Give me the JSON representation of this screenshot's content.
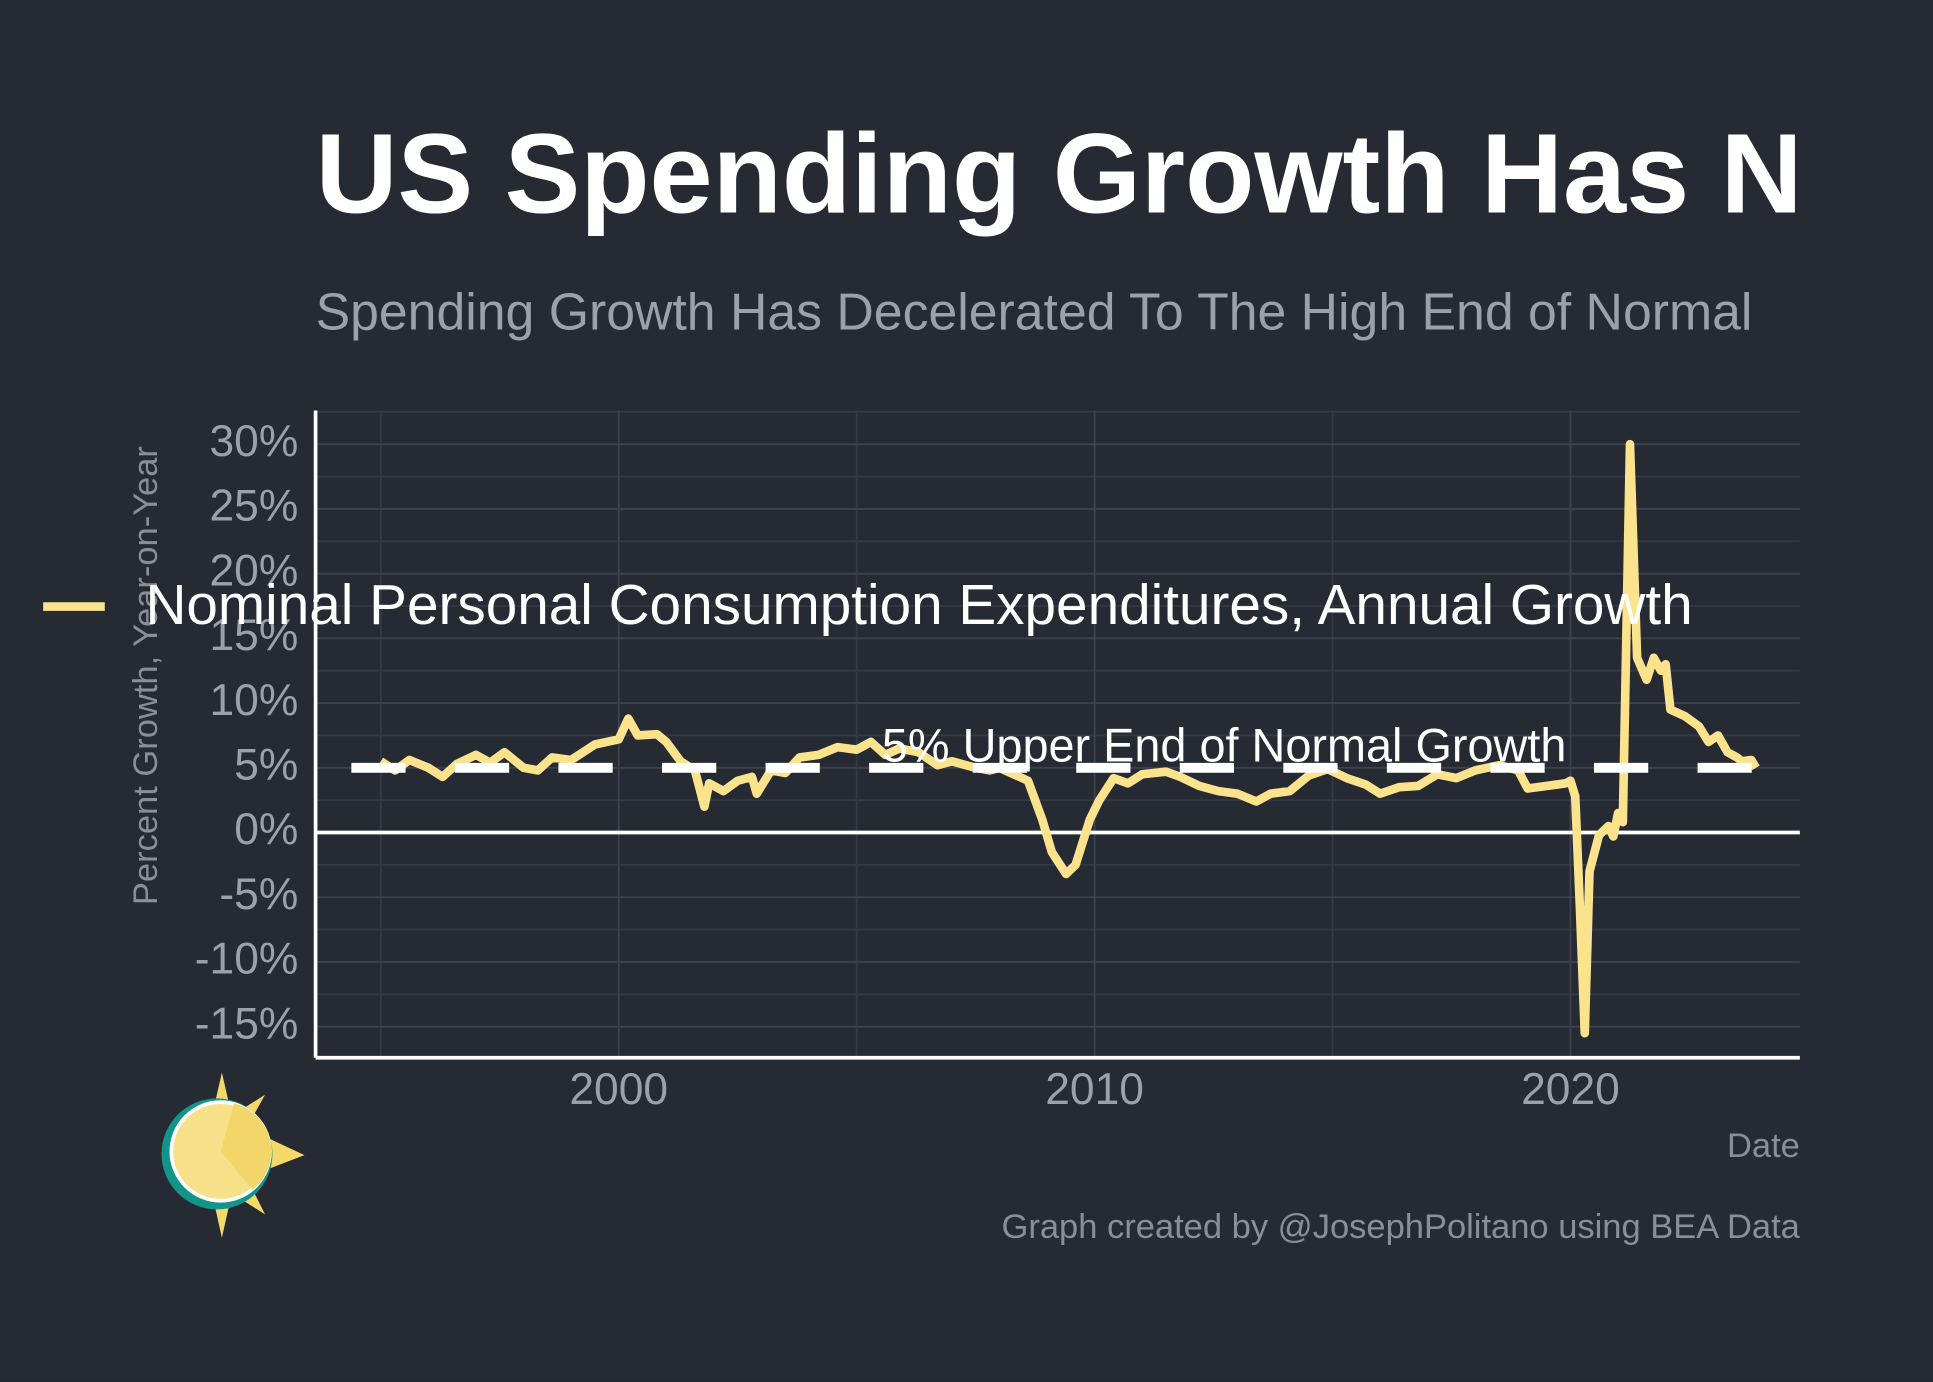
{
  "chart_data": {
    "type": "line",
    "title": "US Spending Growth Has N",
    "subtitle": "Spending Growth Has Decelerated To The High End of Normal",
    "x_label": "Date",
    "y_label": "Percent Growth, Year-on-Year",
    "caption": "Graph created by @JosephPolitano using BEA Data",
    "annotation": {
      "text": "5% Upper End of Normal Growth",
      "y": 5
    },
    "zero_line": 0,
    "grid": true,
    "legend": "top-left",
    "xlim": [
      1993.63,
      2024.82
    ],
    "ylim": [
      -17.4,
      32.6
    ],
    "xticks": [
      2000,
      2010,
      2020
    ],
    "yticks": [
      {
        "value": -15,
        "label": "-15%"
      },
      {
        "value": -10,
        "label": "-10%"
      },
      {
        "value": -5,
        "label": "-5%"
      },
      {
        "value": 0,
        "label": "0%"
      },
      {
        "value": 5,
        "label": "5%"
      },
      {
        "value": 10,
        "label": "10%"
      },
      {
        "value": 15,
        "label": "15%"
      },
      {
        "value": 20,
        "label": "20%"
      },
      {
        "value": 25,
        "label": "25%"
      },
      {
        "value": 30,
        "label": "30%"
      }
    ],
    "x": [
      1995.0,
      1995.3,
      1995.6,
      1996.0,
      1996.3,
      1996.6,
      1997.0,
      1997.3,
      1997.6,
      1998.0,
      1998.3,
      1998.6,
      1999.0,
      1999.5,
      2000.0,
      2000.2,
      2000.4,
      2000.8,
      2001.0,
      2001.3,
      2001.6,
      2001.8,
      2001.9,
      2002.2,
      2002.5,
      2002.8,
      2002.9,
      2003.2,
      2003.5,
      2003.8,
      2004.2,
      2004.6,
      2005.0,
      2005.3,
      2005.6,
      2005.9,
      2006.3,
      2006.7,
      2007.0,
      2007.5,
      2007.8,
      2008.0,
      2008.3,
      2008.6,
      2008.9,
      2009.1,
      2009.4,
      2009.6,
      2009.9,
      2010.1,
      2010.4,
      2010.7,
      2011.0,
      2011.5,
      2011.8,
      2012.2,
      2012.6,
      2013.0,
      2013.4,
      2013.7,
      2014.1,
      2014.5,
      2014.9,
      2015.3,
      2015.7,
      2016.0,
      2016.4,
      2016.8,
      2017.2,
      2017.6,
      2018.0,
      2018.5,
      2018.9,
      2019.1,
      2019.5,
      2019.9,
      2020.0,
      2020.1,
      2020.2,
      2020.3,
      2020.4,
      2020.6,
      2020.8,
      2020.9,
      2021.0,
      2021.1,
      2021.25,
      2021.4,
      2021.6,
      2021.75,
      2021.9,
      2022.0,
      2022.1,
      2022.4,
      2022.7,
      2022.9,
      2023.1,
      2023.3,
      2023.5,
      2023.6,
      2023.8,
      2023.9
    ],
    "series": [
      {
        "name": "Nominal Personal Consumption Expenditures, Annual Growth",
        "color": "#fbe38e",
        "values": [
          5.5,
          4.8,
          5.6,
          5.0,
          4.3,
          5.3,
          6.0,
          5.4,
          6.2,
          5.0,
          4.8,
          5.8,
          5.6,
          6.8,
          7.2,
          8.8,
          7.5,
          7.6,
          7.0,
          5.5,
          4.8,
          2.0,
          3.8,
          3.2,
          4.0,
          4.3,
          3.0,
          4.8,
          4.6,
          5.8,
          6.0,
          6.6,
          6.4,
          7.0,
          6.0,
          6.5,
          6.2,
          5.2,
          5.5,
          5.0,
          4.8,
          5.0,
          4.5,
          4.0,
          1.0,
          -1.5,
          -3.2,
          -2.5,
          1.0,
          2.5,
          4.2,
          3.8,
          4.5,
          4.7,
          4.3,
          3.6,
          3.2,
          3.0,
          2.4,
          3.0,
          3.2,
          4.4,
          4.9,
          4.2,
          3.7,
          3.0,
          3.5,
          3.6,
          4.5,
          4.2,
          4.8,
          5.2,
          4.8,
          3.4,
          3.6,
          3.8,
          4.0,
          2.8,
          -6.0,
          -15.5,
          -3.0,
          -0.2,
          0.5,
          -0.3,
          1.5,
          0.8,
          30.0,
          13.5,
          11.8,
          13.5,
          12.5,
          13.0,
          9.5,
          9.0,
          8.2,
          7.0,
          7.5,
          6.2,
          5.8,
          5.5,
          5.6,
          5.0
        ]
      }
    ]
  }
}
